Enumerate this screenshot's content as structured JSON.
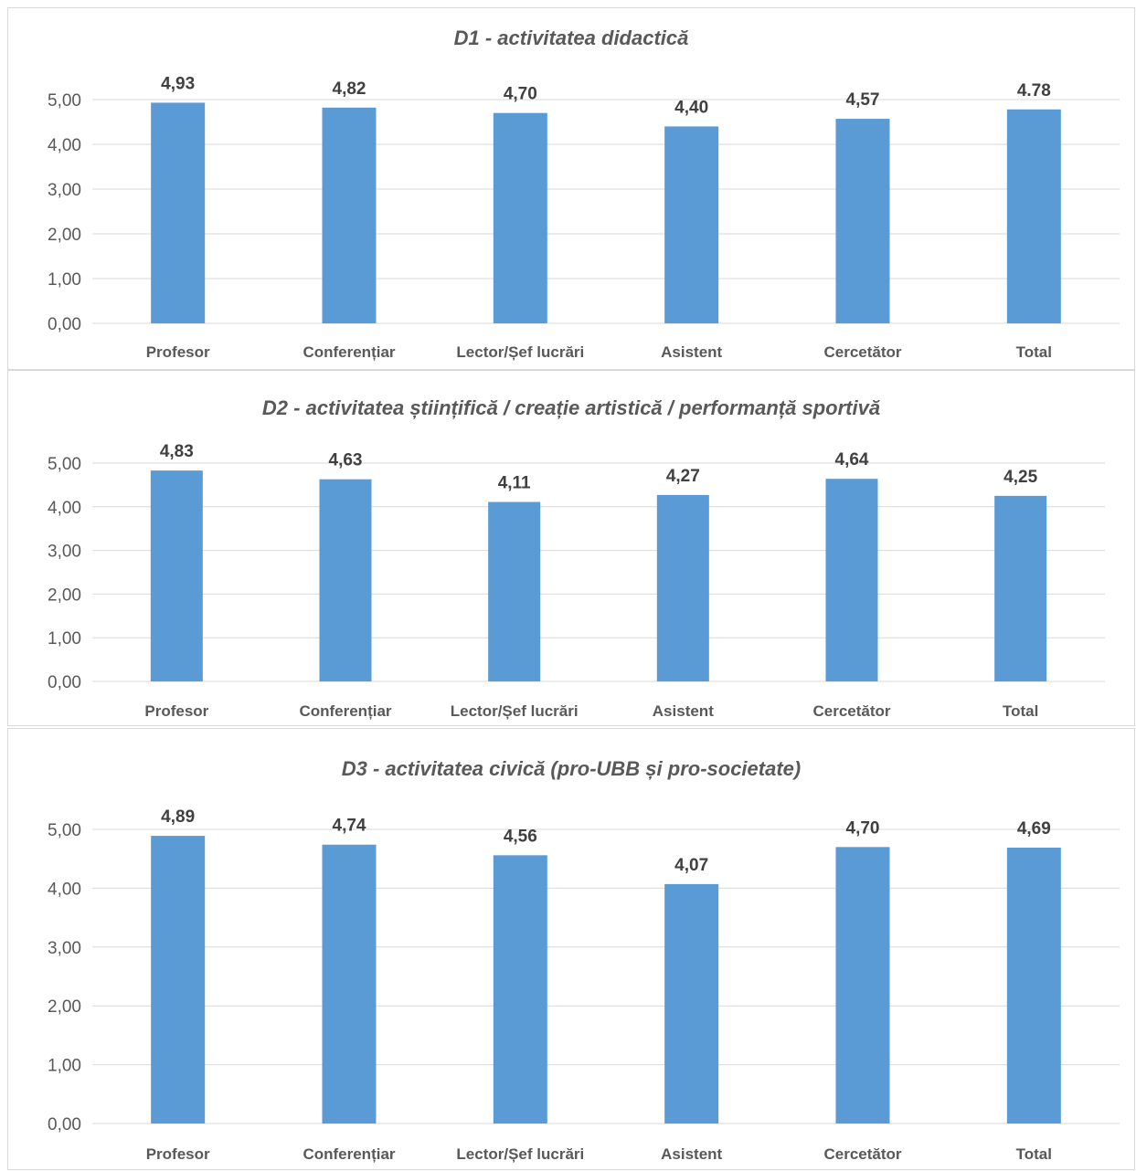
{
  "chart_data": [
    {
      "type": "bar",
      "title": "D1 - activitatea didactică",
      "categories": [
        "Profesor",
        "Conferențiar",
        "Lector/Șef lucrări",
        "Asistent",
        "Cercetător",
        "Total"
      ],
      "values": [
        4.93,
        4.82,
        4.7,
        4.4,
        4.57,
        4.78
      ],
      "data_labels": [
        "4,93",
        "4,82",
        "4,70",
        "4,40",
        "4,57",
        "4.78"
      ],
      "y_ticks": [
        "0,00",
        "1,00",
        "2,00",
        "3,00",
        "4,00",
        "5,00"
      ],
      "ylim": [
        0,
        5
      ],
      "grid": true,
      "legend": "none",
      "bar_color": "#5b9bd5"
    },
    {
      "type": "bar",
      "title": "D2 - activitatea științifică / creație artistică / performanță sportivă",
      "categories": [
        "Profesor",
        "Conferențiar",
        "Lector/Șef lucrări",
        "Asistent",
        "Cercetător",
        "Total"
      ],
      "values": [
        4.83,
        4.63,
        4.11,
        4.27,
        4.64,
        4.25
      ],
      "data_labels": [
        "4,83",
        "4,63",
        "4,11",
        "4,27",
        "4,64",
        "4,25"
      ],
      "y_ticks": [
        "0,00",
        "1,00",
        "2,00",
        "3,00",
        "4,00",
        "5,00"
      ],
      "ylim": [
        0,
        5
      ],
      "grid": true,
      "legend": "none",
      "bar_color": "#5b9bd5"
    },
    {
      "type": "bar",
      "title": "D3 - activitatea civică (pro-UBB și pro-societate)",
      "categories": [
        "Profesor",
        "Conferențiar",
        "Lector/Șef lucrări",
        "Asistent",
        "Cercetător",
        "Total"
      ],
      "values": [
        4.89,
        4.74,
        4.56,
        4.07,
        4.7,
        4.69
      ],
      "data_labels": [
        "4,89",
        "4,74",
        "4,56",
        "4,07",
        "4,70",
        "4,69"
      ],
      "y_ticks": [
        "0,00",
        "1,00",
        "2,00",
        "3,00",
        "4,00",
        "5,00"
      ],
      "ylim": [
        0,
        5
      ],
      "grid": true,
      "legend": "none",
      "bar_color": "#5b9bd5"
    }
  ],
  "colors": {
    "bar": "#5b9bd5",
    "gridline": "#d9d9d9",
    "axis_text": "#595959",
    "title_text": "#595959",
    "label_text": "#404040"
  }
}
